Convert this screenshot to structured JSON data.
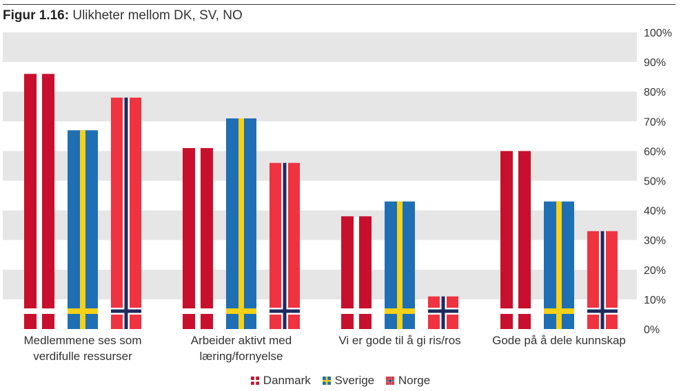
{
  "figure": {
    "label": "Figur 1.16:",
    "title": "Ulikheter mellom DK, SV, NO"
  },
  "chart_data": {
    "type": "bar",
    "title": "Ulikheter mellom DK, SV, NO",
    "categories": [
      [
        "Medlemmene ses som",
        "verdifulle ressurser"
      ],
      [
        "Arbeider aktivt med",
        "læring/fornyelse"
      ],
      [
        "Vi er gode til å gi ris/ros"
      ],
      [
        "Gode på å dele kunnskap"
      ]
    ],
    "series": [
      {
        "name": "Danmark",
        "values": [
          86,
          61,
          38,
          60
        ],
        "color": "#c8102e",
        "cross": "#ffffff",
        "cross_inner": ""
      },
      {
        "name": "Sverige",
        "values": [
          67,
          71,
          43,
          43
        ],
        "color": "#1f6fb5",
        "cross": "#f7d117",
        "cross_inner": ""
      },
      {
        "name": "Norge",
        "values": [
          78,
          56,
          11,
          33
        ],
        "color": "#ef3340",
        "cross": "#ffffff",
        "cross_inner": "#1d2a5e"
      }
    ],
    "ylim": [
      0,
      100
    ],
    "yticks": [
      "0%",
      "10%",
      "20%",
      "30%",
      "40%",
      "50%",
      "60%",
      "70%",
      "80%",
      "90%",
      "100%"
    ],
    "grid": true,
    "legend": "bottom-center"
  }
}
